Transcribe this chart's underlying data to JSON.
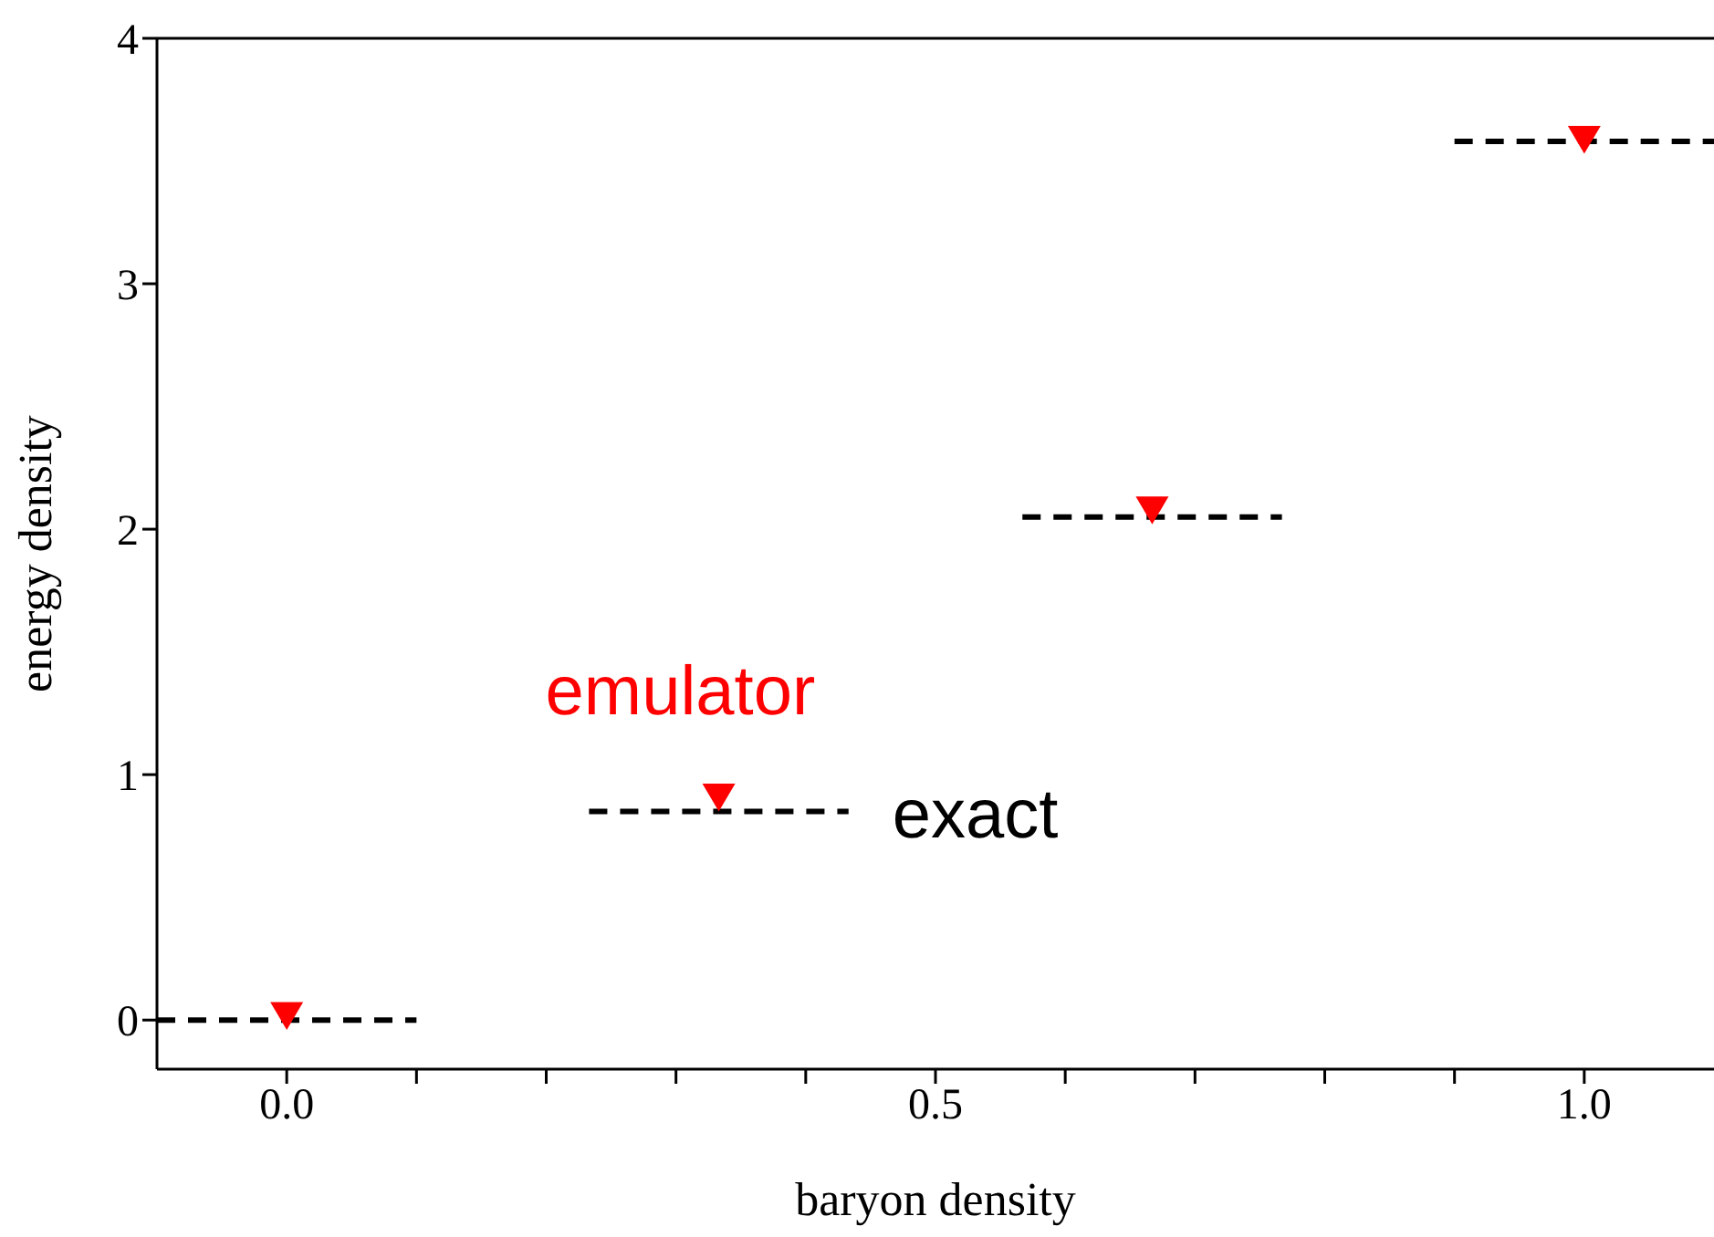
{
  "chart_data": {
    "type": "scatter",
    "xlabel": "baryon density",
    "ylabel": "energy density",
    "xlim": [
      -0.1,
      1.1
    ],
    "xticks": [
      {
        "value": 0,
        "label": "0.0"
      },
      {
        "value": 0.1,
        "label": null
      },
      {
        "value": 0.2,
        "label": null
      },
      {
        "value": 0.3,
        "label": null
      },
      {
        "value": 0.4,
        "label": null
      },
      {
        "value": 0.5,
        "label": "0.5"
      },
      {
        "value": 0.6,
        "label": null
      },
      {
        "value": 0.7,
        "label": null
      },
      {
        "value": 0.8,
        "label": null
      },
      {
        "value": 0.9,
        "label": null
      },
      {
        "value": 1.0,
        "label": "1.0"
      }
    ],
    "ylim": [
      -0.2,
      4
    ],
    "yticks": [
      0,
      1,
      2,
      3,
      4
    ],
    "series": [
      {
        "name": "exact",
        "type": "line",
        "color": "#000000",
        "line_style": "dashed",
        "marker": "none",
        "x": [
          -0.1,
          0.1,
          0.1667,
          0.233,
          0.433,
          0.5,
          0.567,
          0.767,
          0.833,
          0.9,
          1.1
        ],
        "values": [
          0,
          0,
          null,
          0.85,
          0.85,
          null,
          2.05,
          2.05,
          null,
          3.58,
          3.58
        ]
      },
      {
        "name": "emulator",
        "color": "#ff0000",
        "marker": "triangle",
        "x": [
          0,
          0.333,
          0.667,
          1.0
        ],
        "values": [
          0.02,
          0.91,
          2.08,
          3.59
        ]
      }
    ]
  }
}
